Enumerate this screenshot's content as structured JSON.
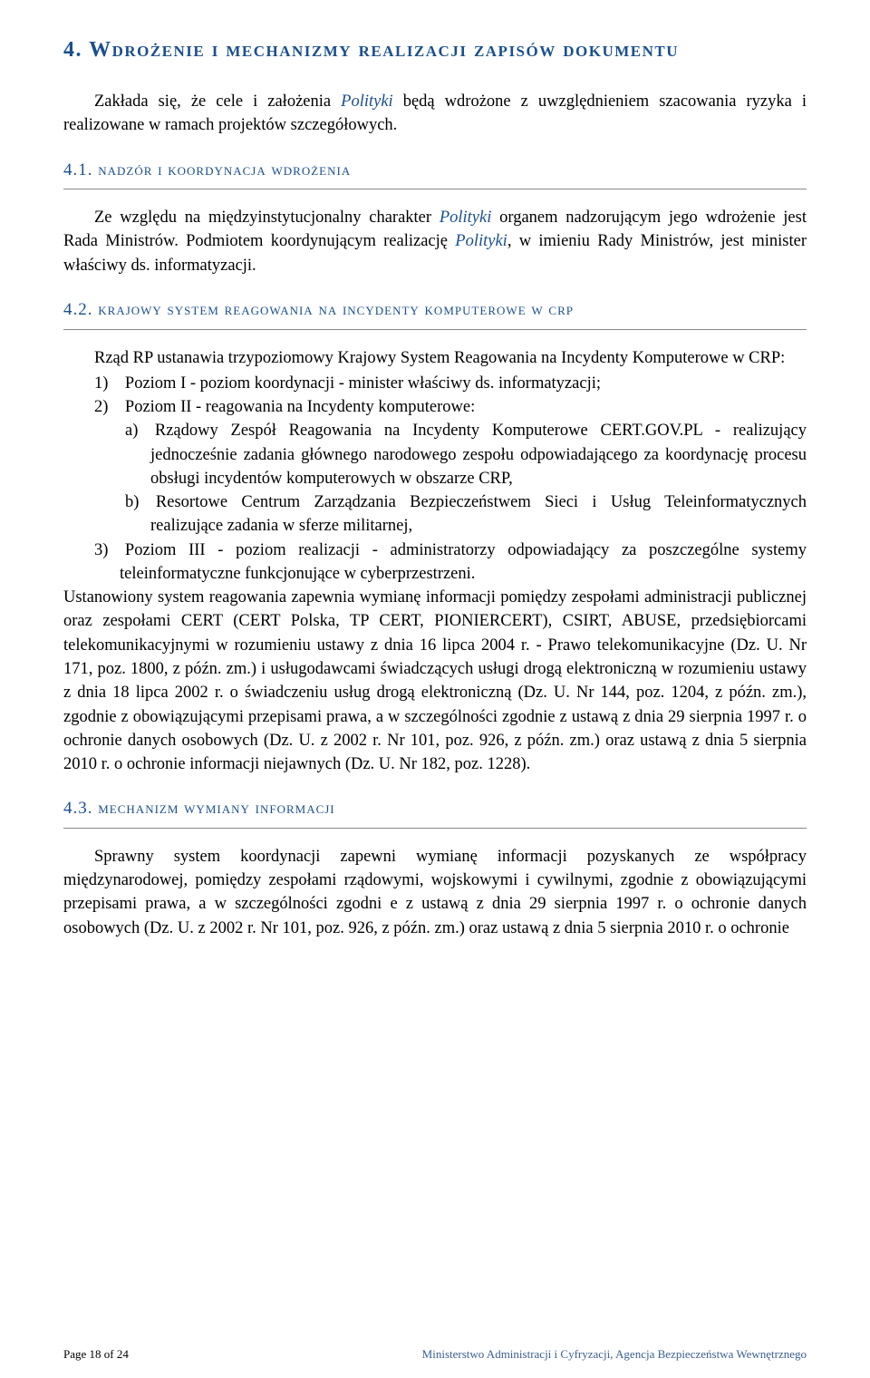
{
  "colors": {
    "heading": "#1a4f8f",
    "body": "#000000",
    "rule": "#888888",
    "footer_right": "#3a5f8f",
    "background": "#ffffff"
  },
  "typography": {
    "h1_fontsize": 24,
    "h2_fontsize": 19,
    "body_fontsize": 18.5,
    "footer_fontsize": 13,
    "font_family": "Georgia, Times New Roman, serif",
    "line_height": 1.42
  },
  "h1": "4. Wdrożenie i mechanizmy realizacji zapisów dokumentu",
  "intro": {
    "pre": "Zakłada się, że cele i założenia ",
    "em": "Polityki",
    "post": " będą wdrożone z uwzględnieniem szacowania ryzyka i realizowane w ramach projektów szczegółowych."
  },
  "s41": {
    "title": "4.1. nadzór i koordynacja wdrożenia",
    "p_pre": "Ze względu na międzyinstytucjonalny charakter ",
    "p_em1": "Polityki",
    "p_mid": " organem nadzorującym jego wdrożenie jest Rada Ministrów. Podmiotem koordynującym realizację ",
    "p_em2": "Polityki",
    "p_post": ", w imieniu Rady Ministrów, jest minister właściwy ds. informatyzacji."
  },
  "s42": {
    "title": "4.2. krajowy system reagowania na incydenty komputerowe w crp",
    "intro": "Rząd RP ustanawia trzypoziomowy Krajowy System Reagowania na Incydenty Komputerowe w CRP:",
    "li1": "1) Poziom I - poziom koordynacji - minister właściwy ds. informatyzacji;",
    "li2": "2) Poziom II - reagowania na Incydenty komputerowe:",
    "li2a": "a) Rządowy Zespół Reagowania na Incydenty Komputerowe CERT.GOV.PL - realizujący jednocześnie zadania głównego narodowego zespołu odpowiadającego za koordynację procesu obsługi incydentów komputerowych w obszarze CRP,",
    "li2b": "b) Resortowe Centrum Zarządzania Bezpieczeństwem Sieci i Usług Teleinformatycznych realizujące zadania w sferze militarnej,",
    "li3": "3) Poziom III - poziom realizacji - administratorzy odpowiadający za poszczególne systemy teleinformatyczne funkcjonujące w cyberprzestrzeni.",
    "cont": "Ustanowiony system reagowania zapewnia wymianę informacji pomiędzy zespołami administracji publicznej oraz zespołami CERT (CERT Polska, TP CERT, PIONIERCERT), CSIRT, ABUSE, przedsiębiorcami telekomunikacyjnymi w rozumieniu ustawy z dnia 16 lipca 2004 r. - Prawo telekomunikacyjne (Dz. U. Nr 171, poz. 1800, z późn. zm.) i usługodawcami świadczących usługi drogą elektroniczną w rozumieniu ustawy z dnia 18 lipca 2002 r. o świadczeniu usług drogą elektroniczną (Dz. U. Nr 144, poz. 1204, z późn. zm.), zgodnie z obowiązującymi przepisami prawa, a w szczególności zgodnie z ustawą z dnia 29 sierpnia 1997 r. o ochronie danych osobowych (Dz. U. z 2002 r. Nr 101, poz. 926, z późn. zm.) oraz ustawą z dnia 5 sierpnia 2010 r. o ochronie informacji niejawnych (Dz. U. Nr 182, poz. 1228)."
  },
  "s43": {
    "title": "4.3. mechanizm wymiany informacji",
    "p": "Sprawny system koordynacji zapewni wymianę informacji pozyskanych ze współpracy międzynarodowej, pomiędzy zespołami rządowymi, wojskowymi i cywilnymi, zgodnie z obowiązującymi przepisami prawa, a w szczególności zgodni e z ustawą z dnia 29 sierpnia 1997 r. o ochronie danych osobowych (Dz. U. z 2002 r. Nr 101, poz. 926, z późn. zm.) oraz ustawą z dnia 5 sierpnia 2010 r. o ochronie"
  },
  "footer": {
    "left": "Page 18 of 24",
    "right": "Ministerstwo Administracji i Cyfryzacji, Agencja Bezpieczeństwa Wewnętrznego"
  }
}
